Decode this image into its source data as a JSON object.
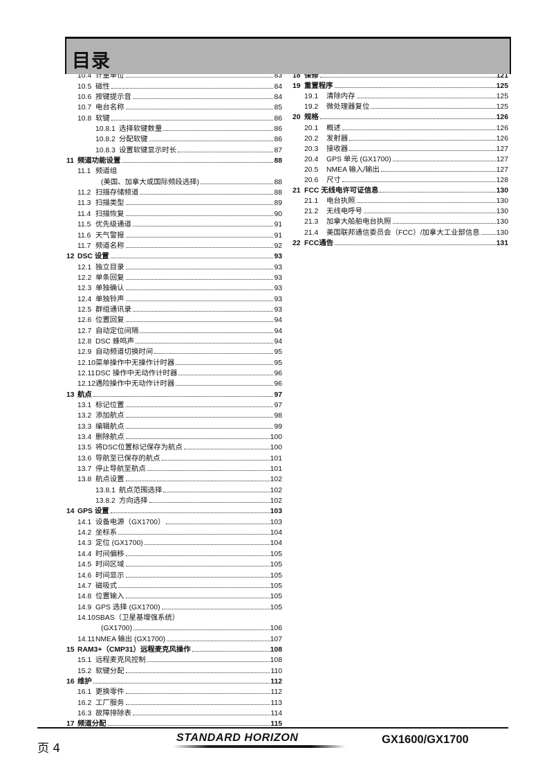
{
  "header": {
    "title": "目录"
  },
  "left_entries": [
    {
      "type": "sub",
      "num": "10.4",
      "title": "计量单位",
      "page": "83"
    },
    {
      "type": "sub",
      "num": "10.5",
      "title": "磁性",
      "page": "84"
    },
    {
      "type": "sub",
      "num": "10.6",
      "title": "按键提示音",
      "page": "84"
    },
    {
      "type": "sub",
      "num": "10.7",
      "title": "电台名称",
      "page": "85"
    },
    {
      "type": "sub",
      "num": "10.8",
      "title": "软键",
      "page": "86"
    },
    {
      "type": "subsub",
      "num": "10.8.1",
      "title": "选择软键数量",
      "page": "86"
    },
    {
      "type": "subsub",
      "num": "10.8.2",
      "title": "分配软键",
      "page": "86"
    },
    {
      "type": "subsub",
      "num": "10.8.3",
      "title": "设置软键显示时长",
      "page": "87"
    },
    {
      "type": "sec",
      "num": "11",
      "title": "频道功能设置",
      "page": "88"
    },
    {
      "type": "first",
      "num": "11.1",
      "title": "频道组"
    },
    {
      "type": "cont",
      "title": "(美国、加拿大或国际频段选择)",
      "page": "88"
    },
    {
      "type": "sub",
      "num": "11.2",
      "title": "扫描存储频道",
      "page": "88"
    },
    {
      "type": "sub",
      "num": "11.3",
      "title": "扫描类型",
      "page": "89"
    },
    {
      "type": "sub",
      "num": "11.4",
      "title": "扫描恢复",
      "page": "90"
    },
    {
      "type": "sub",
      "num": "11.5",
      "title": "优先级通道",
      "page": "91"
    },
    {
      "type": "sub",
      "num": "11.6",
      "title": "天气警报",
      "page": "91"
    },
    {
      "type": "sub",
      "num": "11.7",
      "title": "频道名称",
      "page": "92"
    },
    {
      "type": "sec",
      "num": "12",
      "title": "DSC 设置",
      "page": "93"
    },
    {
      "type": "sub",
      "num": "12.1",
      "title": "独立目录",
      "page": "93"
    },
    {
      "type": "sub",
      "num": "12.2",
      "title": "单条回复",
      "page": "93"
    },
    {
      "type": "sub",
      "num": "12.3",
      "title": "单独确认",
      "page": "93"
    },
    {
      "type": "sub",
      "num": "12.4",
      "title": "单独铃声",
      "page": "93"
    },
    {
      "type": "sub",
      "num": "12.5",
      "title": "群组通讯录",
      "page": "93"
    },
    {
      "type": "sub",
      "num": "12.6",
      "title": "位置回复",
      "page": "94"
    },
    {
      "type": "sub",
      "num": "12.7",
      "title": "自动定位间隔",
      "page": "94"
    },
    {
      "type": "sub",
      "num": "12.8",
      "title": "DSC 蜂鸣声",
      "page": "94"
    },
    {
      "type": "sub",
      "num": "12.9",
      "title": "自动频道切换时间",
      "page": "95"
    },
    {
      "type": "sub",
      "num": "12.10",
      "title": "菜单操作中无操作计时器",
      "page": "95"
    },
    {
      "type": "sub",
      "num": "12.11",
      "title": "DSC 操作中无动作计时器",
      "page": "96"
    },
    {
      "type": "sub",
      "num": "12.12",
      "title": "遇险操作中无动作计时器",
      "page": "96"
    },
    {
      "type": "sec",
      "num": "13",
      "title": "航点",
      "page": "97"
    },
    {
      "type": "sub",
      "num": "13.1",
      "title": "标记位置",
      "page": "97"
    },
    {
      "type": "sub",
      "num": "13.2",
      "title": "添加航点",
      "page": "98"
    },
    {
      "type": "sub",
      "num": "13.3",
      "title": "编辑航点",
      "page": "99"
    },
    {
      "type": "sub",
      "num": "13.4",
      "title": "删除航点",
      "page": "100"
    },
    {
      "type": "sub",
      "num": "13.5",
      "title": "将DSC位置标记保存为航点",
      "page": "100"
    },
    {
      "type": "sub",
      "num": "13.6",
      "title": "导航至已保存的航点",
      "page": "101"
    },
    {
      "type": "sub",
      "num": "13.7",
      "title": "停止导航至航点",
      "page": "101"
    },
    {
      "type": "sub",
      "num": "13.8",
      "title": "航点设置",
      "page": "102"
    },
    {
      "type": "subsub",
      "num": "13.8.1",
      "title": "航点范围选择",
      "page": "102"
    },
    {
      "type": "subsub",
      "num": "13.8.2",
      "title": "方向选择",
      "page": "102"
    },
    {
      "type": "sec",
      "num": "14",
      "title": "GPS 设置",
      "page": "103"
    },
    {
      "type": "sub",
      "num": "14.1",
      "title": "设备电源（GX1700）",
      "page": "103"
    },
    {
      "type": "sub",
      "num": "14.2",
      "title": "坐标系",
      "page": "104"
    },
    {
      "type": "sub",
      "num": "14.3",
      "title": "定位 (GX1700)",
      "page": "104"
    },
    {
      "type": "sub",
      "num": "14.4",
      "title": "时间偏移",
      "page": "105"
    },
    {
      "type": "sub",
      "num": "14.5",
      "title": "时间区域",
      "page": "105"
    },
    {
      "type": "sub",
      "num": "14.6",
      "title": "时间显示",
      "page": "105"
    },
    {
      "type": "sub",
      "num": "14.7",
      "title": "磁吸式",
      "page": "105"
    },
    {
      "type": "sub",
      "num": "14.8",
      "title": "位置输入",
      "page": "105"
    },
    {
      "type": "sub",
      "num": "14.9",
      "title": "GPS 选择 (GX1700)",
      "page": "105"
    },
    {
      "type": "first",
      "num": "14.10",
      "title": "SBAS（卫星基增强系统）"
    },
    {
      "type": "cont",
      "title": "(GX1700)",
      "page": "106"
    },
    {
      "type": "sub",
      "num": "14.11",
      "title": "NMEA 输出 (GX1700)",
      "page": "107"
    },
    {
      "type": "sec",
      "num": "15",
      "title": "RAM3+（CMP31）远程麦克风操作",
      "page": "108"
    },
    {
      "type": "sub",
      "num": "15.1",
      "title": "远程麦克风控制",
      "page": "108"
    },
    {
      "type": "sub",
      "num": "15.2",
      "title": "软键分配",
      "page": "110"
    },
    {
      "type": "sec",
      "num": "16",
      "title": "维护",
      "page": "112"
    },
    {
      "type": "sub",
      "num": "16.1",
      "title": "更换零件",
      "page": "112"
    },
    {
      "type": "sub",
      "num": "16.2",
      "title": "工厂服务",
      "page": "113"
    },
    {
      "type": "sub",
      "num": "16.3",
      "title": "故障排除表",
      "page": "114"
    },
    {
      "type": "sec",
      "num": "17",
      "title": "频道分配",
      "page": "115"
    }
  ],
  "right_entries": [
    {
      "type": "sec",
      "num": "18",
      "title": "保修",
      "page": "121"
    },
    {
      "type": "sec",
      "num": "19",
      "title": "重置程序",
      "page": "125"
    },
    {
      "type": "sub",
      "num": "19.1",
      "title": "清除内存",
      "page": "125"
    },
    {
      "type": "sub",
      "num": "19.2",
      "title": "微处理器复位",
      "page": "125"
    },
    {
      "type": "sec",
      "num": "20",
      "title": "规格",
      "page": "126"
    },
    {
      "type": "sub",
      "num": "20.1",
      "title": "概述",
      "page": "126"
    },
    {
      "type": "sub",
      "num": "20.2",
      "title": "发射器",
      "page": "126"
    },
    {
      "type": "sub",
      "num": "20.3",
      "title": "接收器",
      "page": "127"
    },
    {
      "type": "sub",
      "num": "20.4",
      "title": "GPS 单元 (GX1700)",
      "page": "127"
    },
    {
      "type": "sub",
      "num": "20.5",
      "title": "NMEA 输入/输出",
      "page": "127"
    },
    {
      "type": "sub",
      "num": "20.6",
      "title": "尺寸",
      "page": "128"
    },
    {
      "type": "sec",
      "num": "21",
      "title": "FCC 无线电许可证信息",
      "page": "130"
    },
    {
      "type": "sub",
      "num": "21.1",
      "title": "电台执照",
      "page": "130"
    },
    {
      "type": "sub",
      "num": "21.2",
      "title": "无线电呼号",
      "page": "130"
    },
    {
      "type": "sub",
      "num": "21.3",
      "title": "加拿大船舶电台执照",
      "page": "130"
    },
    {
      "type": "sub",
      "num": "21.4",
      "title": "美国联邦通信委员会（FCC）/加拿大工业部信息",
      "page": "130"
    },
    {
      "type": "sec",
      "num": "22",
      "title": "FCC通告",
      "page": "131"
    }
  ],
  "footer": {
    "page_label": "页 4",
    "brand": "STANDARD HORIZON",
    "model": "GX1600/GX1700"
  }
}
